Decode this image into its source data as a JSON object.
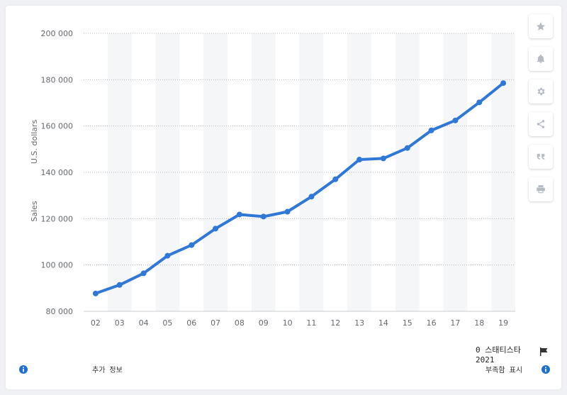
{
  "chart_data": {
    "type": "line",
    "categories": [
      "02",
      "03",
      "04",
      "05",
      "06",
      "07",
      "08",
      "09",
      "10",
      "11",
      "12",
      "13",
      "14",
      "15",
      "16",
      "17",
      "18",
      "19"
    ],
    "series": [
      {
        "values": [
          87700,
          91400,
          96400,
          104000,
          108600,
          115700,
          121800,
          120900,
          123000,
          129500,
          137000,
          145500,
          146000,
          150500,
          158100,
          162400,
          170200,
          178500
        ]
      }
    ],
    "yticks": [
      "80 000",
      "100 000",
      "120 000",
      "140 000",
      "160 000",
      "180 000",
      "200 000"
    ],
    "ylim": [
      80000,
      200000
    ],
    "ylabel": [
      "Sales",
      "U.S. dollars"
    ],
    "y_tick_values": [
      80000,
      100000,
      120000,
      140000,
      160000,
      180000,
      200000
    ],
    "grid": true,
    "line_color": "#2f78d8",
    "band_color": "#f5f6f8"
  },
  "toolbar": {
    "buttons": [
      "star-icon",
      "bell-icon",
      "gear-icon",
      "share-icon",
      "quote-icon",
      "print-icon"
    ]
  },
  "footer": {
    "source_line1": "0 스태티스타",
    "source_line2": "2021",
    "extra_info": "추가 정보",
    "show_source": "부족함 표시"
  }
}
